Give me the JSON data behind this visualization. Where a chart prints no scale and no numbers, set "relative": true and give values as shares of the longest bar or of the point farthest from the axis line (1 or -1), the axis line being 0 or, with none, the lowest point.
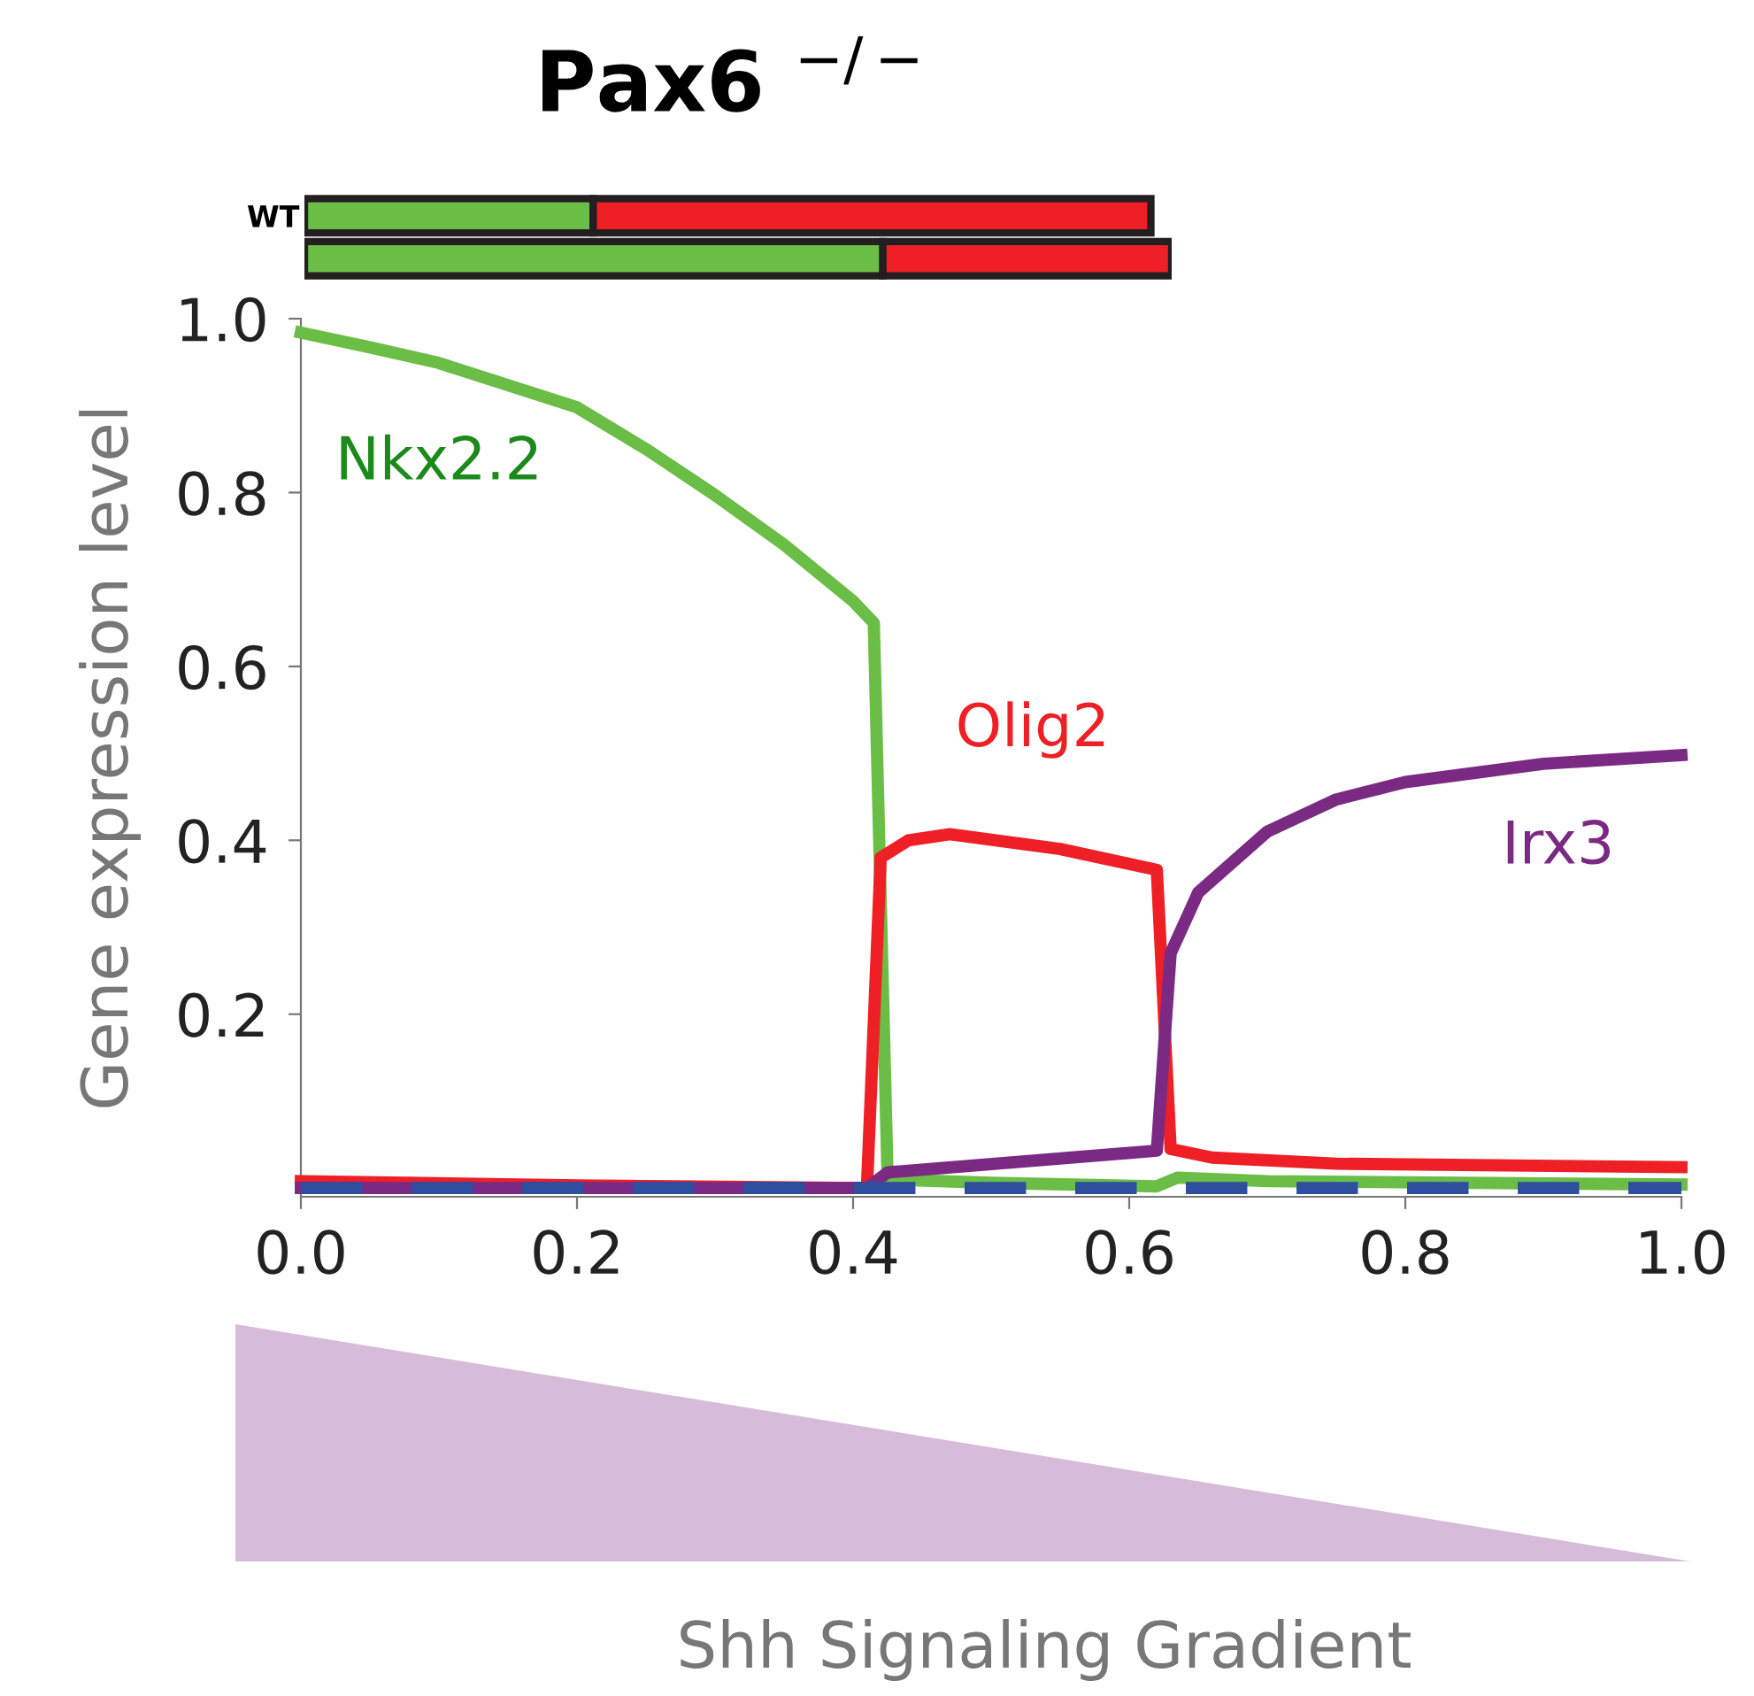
{
  "chart_data": [
    {
      "type": "bar",
      "title": "Pax6 $^{−/−}$",
      "orientation": "horizontal",
      "stacked": true,
      "relative": true,
      "categories": [
        "WT",
        null
      ],
      "series": [
        {
          "color": "#6abd45",
          "values": [
            0.333,
            0.667
          ]
        },
        {
          "color": "#ee1f25",
          "values": [
            0.643,
            0.333
          ]
        }
      ]
    },
    {
      "type": "line",
      "xlabel": "Shh Signaling Gradient",
      "ylabel": "Gene expression level",
      "xlim": [
        0,
        1
      ],
      "ylim": [
        -0.01,
        1.0
      ],
      "xticks": [
        {
          "value": 0,
          "label": "0.0"
        },
        0.2,
        0.4,
        0.6,
        0.8,
        {
          "value": 1,
          "label": "1.0"
        }
      ],
      "yticks": [
        0.2,
        0.4,
        0.6,
        0.8,
        {
          "value": 1,
          "label": "1.0"
        }
      ],
      "grid": false,
      "legend": false,
      "series": [
        {
          "color": "#2e4ea0",
          "line_style": "dashed",
          "x": [
            0,
            1
          ],
          "values": [
            0,
            0
          ]
        },
        {
          "name": "Nkx2.2",
          "color": "#6abd45",
          "x": [
            0,
            0.05,
            0.1,
            0.2,
            0.25,
            0.3,
            0.35,
            0.4,
            0.415,
            0.425,
            0.5,
            0.62,
            0.635,
            0.7,
            1.0
          ],
          "values": [
            0.984,
            0.967,
            0.949,
            0.898,
            0.85,
            0.797,
            0.74,
            0.675,
            0.65,
            0.01,
            0.006,
            0.002,
            0.012,
            0.008,
            0.004
          ]
        },
        {
          "name": "Olig2",
          "color": "#ee1f25",
          "x": [
            0,
            0.2,
            0.41,
            0.42,
            0.44,
            0.47,
            0.55,
            0.62,
            0.63,
            0.66,
            0.75,
            1.0
          ],
          "values": [
            0.008,
            0.003,
            0.0,
            0.38,
            0.4,
            0.407,
            0.39,
            0.366,
            0.045,
            0.035,
            0.028,
            0.024
          ]
        },
        {
          "name": "Irx3",
          "color": "#7b2a83",
          "x": [
            0,
            0.41,
            0.425,
            0.62,
            0.63,
            0.65,
            0.7,
            0.75,
            0.8,
            0.9,
            1.0
          ],
          "values": [
            0,
            0,
            0.018,
            0.043,
            0.27,
            0.34,
            0.41,
            0.447,
            0.467,
            0.488,
            0.498
          ]
        }
      ]
    }
  ]
}
